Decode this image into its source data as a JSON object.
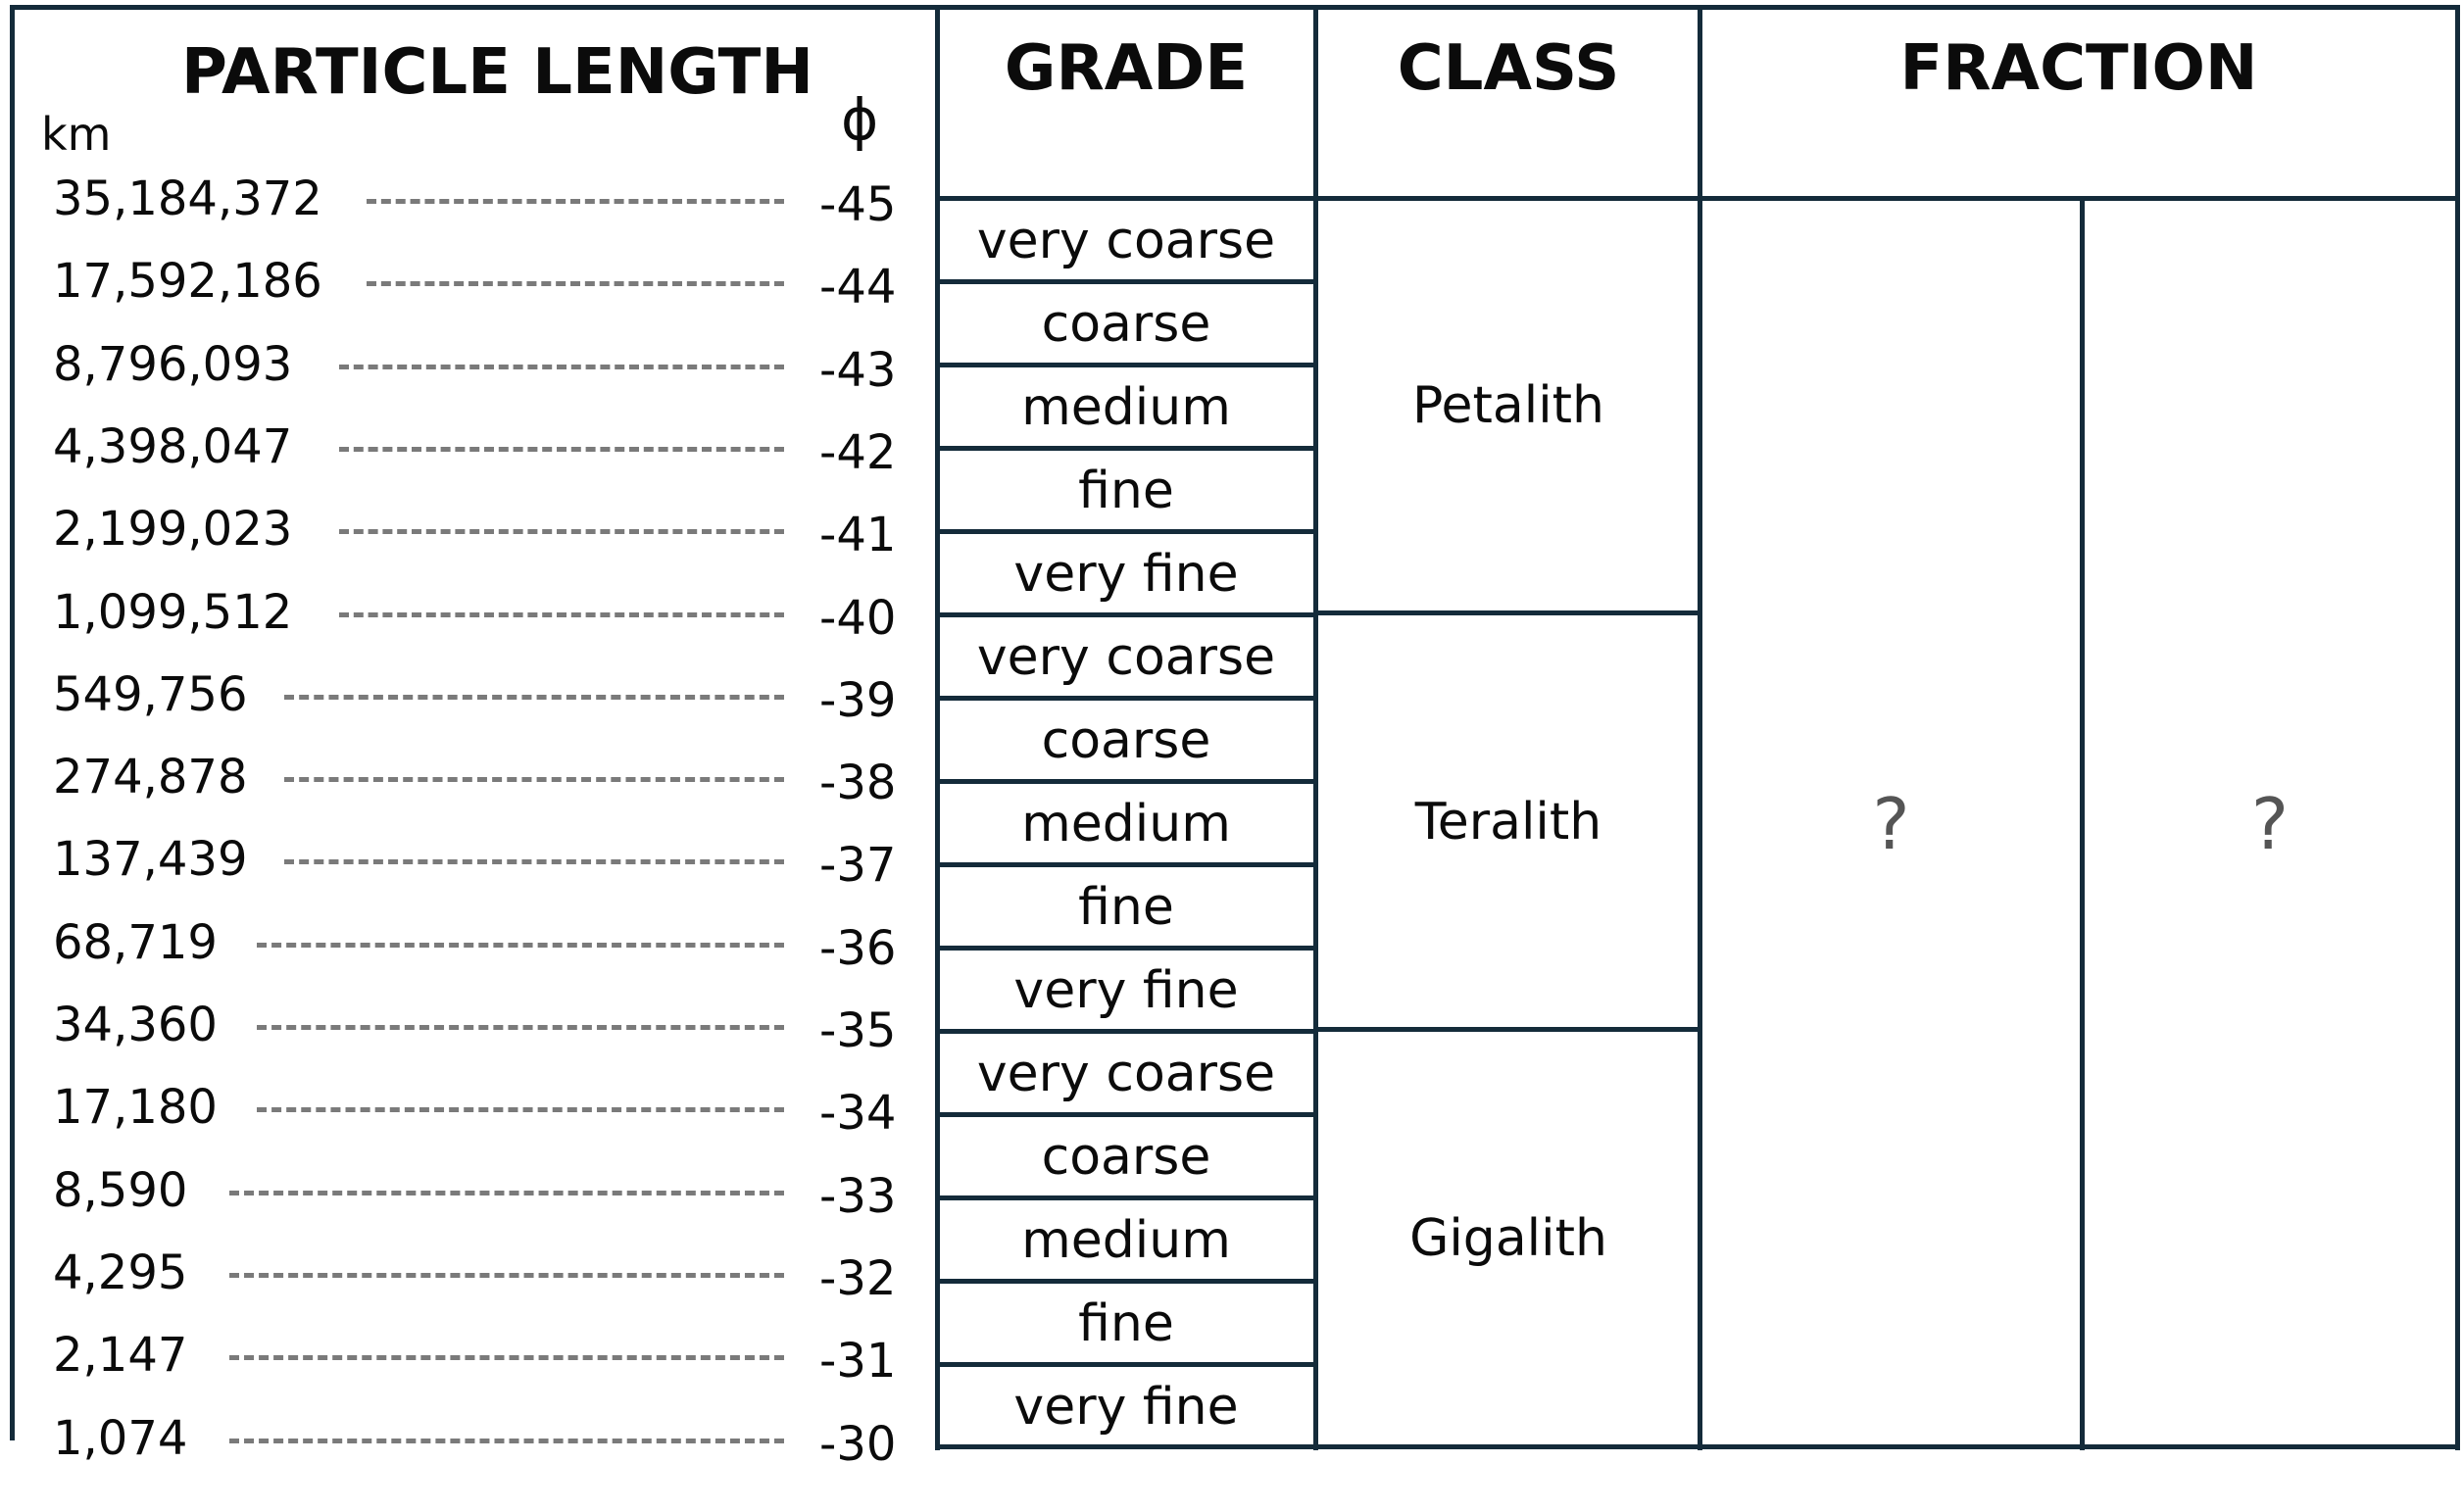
{
  "headers": {
    "particle_length": "PARTICLE LENGTH",
    "unit_km": "km",
    "unit_phi": "ϕ",
    "grade": "GRADE",
    "class": "CLASS",
    "fraction": "FRACTION"
  },
  "scale": [
    {
      "km": "35,184,372",
      "phi": "-45"
    },
    {
      "km": "17,592,186",
      "phi": "-44"
    },
    {
      "km": "8,796,093",
      "phi": "-43"
    },
    {
      "km": "4,398,047",
      "phi": "-42"
    },
    {
      "km": "2,199,023",
      "phi": "-41"
    },
    {
      "km": "1,099,512",
      "phi": "-40"
    },
    {
      "km": "549,756",
      "phi": "-39"
    },
    {
      "km": "274,878",
      "phi": "-38"
    },
    {
      "km": "137,439",
      "phi": "-37"
    },
    {
      "km": "68,719",
      "phi": "-36"
    },
    {
      "km": "34,360",
      "phi": "-35"
    },
    {
      "km": "17,180",
      "phi": "-34"
    },
    {
      "km": "8,590",
      "phi": "-33"
    },
    {
      "km": "4,295",
      "phi": "-32"
    },
    {
      "km": "2,147",
      "phi": "-31"
    },
    {
      "km": "1,074",
      "phi": "-30"
    }
  ],
  "grades": [
    "very coarse",
    "coarse",
    "medium",
    "fine",
    "very fine",
    "very coarse",
    "coarse",
    "medium",
    "fine",
    "very fine",
    "very coarse",
    "coarse",
    "medium",
    "fine",
    "very fine"
  ],
  "classes": [
    "Petalith",
    "Teralith",
    "Gigalith"
  ],
  "fraction_cells": [
    "?",
    "?"
  ]
}
